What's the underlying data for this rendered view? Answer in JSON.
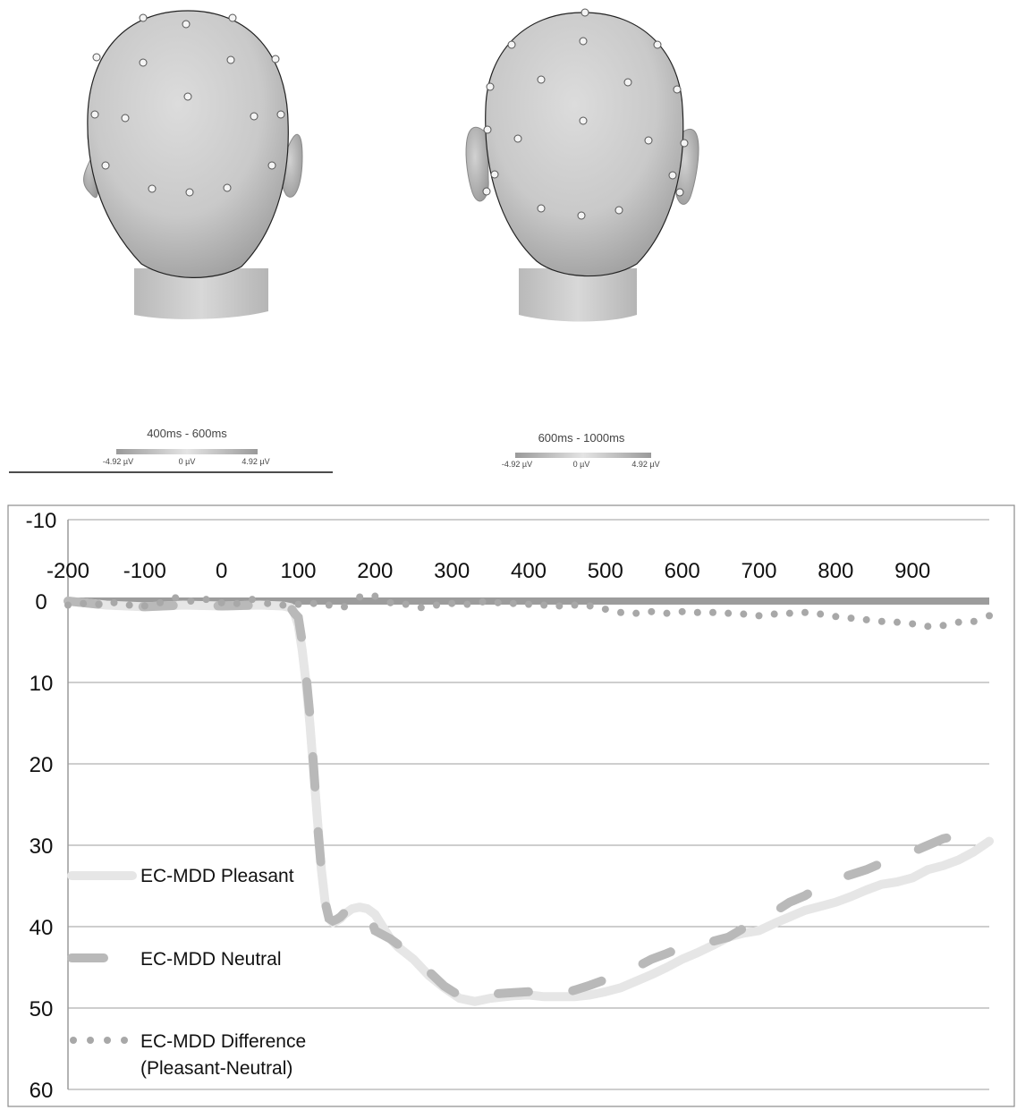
{
  "topomaps": [
    {
      "window_label": "400ms - 600ms",
      "scale_labels": [
        "-4.92 µV",
        "0 µV",
        "4.92 µV"
      ]
    },
    {
      "window_label": "600ms - 1000ms",
      "scale_labels": [
        "-4.92 µV",
        "0 µV",
        "4.92 µV"
      ]
    }
  ],
  "chart_data": {
    "type": "line",
    "title": "",
    "xlabel": "",
    "ylabel": "",
    "x_ticks": [
      -200,
      -100,
      0,
      100,
      200,
      300,
      400,
      500,
      600,
      700,
      800,
      900
    ],
    "y_ticks": [
      -10,
      0,
      10,
      20,
      30,
      40,
      50,
      60
    ],
    "xlim": [
      -200,
      1000
    ],
    "ylim": [
      -10,
      60
    ],
    "y_inverted": true,
    "grid": true,
    "legend_placement": "bottom-left",
    "colors": {
      "pleasant": "#e6e6e6",
      "neutral": "#b9b9b9",
      "difference": "#a8a8a8",
      "zero": "#9c9c9c"
    },
    "series": [
      {
        "name": "EC-MDD Pleasant",
        "style": "solid",
        "x": [
          -200,
          -150,
          -100,
          -50,
          0,
          50,
          80,
          90,
          95,
          100,
          105,
          110,
          115,
          120,
          125,
          130,
          135,
          140,
          145,
          150,
          155,
          160,
          170,
          180,
          190,
          200,
          210,
          220,
          230,
          250,
          270,
          290,
          310,
          330,
          350,
          380,
          400,
          420,
          440,
          460,
          480,
          500,
          520,
          540,
          560,
          580,
          600,
          620,
          640,
          660,
          680,
          700,
          720,
          740,
          760,
          780,
          800,
          820,
          840,
          860,
          880,
          900,
          920,
          940,
          960,
          980,
          1000
        ],
        "y": [
          0,
          0.5,
          0.7,
          0.5,
          0.6,
          0.5,
          0.6,
          0.8,
          1.5,
          3,
          6,
          10,
          15,
          21,
          27,
          33,
          37,
          39,
          39.5,
          39.3,
          39,
          38.5,
          37.8,
          37.6,
          37.8,
          38.5,
          40,
          41.5,
          42.5,
          44,
          46,
          47.5,
          48.8,
          49.2,
          48.8,
          48.5,
          48.4,
          48.6,
          48.6,
          48.6,
          48.4,
          48,
          47.5,
          46.7,
          45.9,
          45,
          44,
          43.2,
          42.3,
          41.3,
          40.8,
          40.5,
          39.6,
          38.8,
          38,
          37.5,
          37,
          36.3,
          35.5,
          34.8,
          34.5,
          34,
          33,
          32.5,
          31.8,
          30.8,
          29.5
        ]
      },
      {
        "name": "EC-MDD Neutral",
        "style": "dashed",
        "x": [
          -200,
          -150,
          -100,
          -50,
          0,
          50,
          80,
          90,
          95,
          100,
          105,
          110,
          115,
          120,
          125,
          130,
          135,
          140,
          145,
          150,
          155,
          160,
          170,
          180,
          190,
          200,
          210,
          220,
          230,
          250,
          270,
          290,
          310,
          330,
          350,
          380,
          400,
          420,
          440,
          460,
          480,
          500,
          520,
          540,
          560,
          580,
          600,
          620,
          640,
          660,
          680,
          700,
          720,
          740,
          760,
          780,
          800,
          820,
          840,
          860,
          880,
          900,
          920,
          940,
          960,
          980,
          1000
        ],
        "y": [
          0,
          0.5,
          0.7,
          0.5,
          0.6,
          0.5,
          0.6,
          0.8,
          1.5,
          2,
          5,
          9,
          14,
          20.5,
          27.5,
          33,
          37,
          39,
          39.3,
          39.1,
          38.8,
          38.3,
          37.8,
          37.6,
          37.8,
          40.5,
          41,
          41.5,
          42.2,
          43.5,
          45.5,
          47.3,
          48.5,
          48.6,
          48.3,
          48.1,
          48,
          48.2,
          48.3,
          47.8,
          47.2,
          46.5,
          45.8,
          45,
          44,
          43.3,
          42.5,
          42,
          41.8,
          41.3,
          40.2,
          39.3,
          38.2,
          37,
          36.2,
          35,
          34.2,
          33.6,
          33,
          32.2,
          31.4,
          30.8,
          30,
          29.2,
          28.8,
          28.3,
          28
        ]
      },
      {
        "name": "EC-MDD Difference\n(Pleasant-Neutral)",
        "style": "dotted",
        "x": [
          -200,
          -180,
          -160,
          -140,
          -120,
          -100,
          -80,
          -60,
          -40,
          -20,
          0,
          20,
          40,
          60,
          80,
          100,
          120,
          140,
          160,
          180,
          200,
          220,
          240,
          260,
          280,
          300,
          320,
          340,
          360,
          380,
          400,
          420,
          440,
          460,
          480,
          500,
          520,
          540,
          560,
          580,
          600,
          620,
          640,
          660,
          680,
          700,
          720,
          740,
          760,
          780,
          800,
          820,
          840,
          860,
          880,
          900,
          920,
          940,
          960,
          980,
          1000
        ],
        "y": [
          0.5,
          0.3,
          0.4,
          0.2,
          0.5,
          0.6,
          0.2,
          -0.4,
          0,
          -0.2,
          0.2,
          0.3,
          -0.2,
          0.3,
          0.5,
          0.4,
          0.3,
          0.5,
          0.7,
          -0.5,
          -0.6,
          0.2,
          0.4,
          0.8,
          0.5,
          0.3,
          0.4,
          0.1,
          0.2,
          0.3,
          0.4,
          0.5,
          0.6,
          0.5,
          0.6,
          1,
          1.4,
          1.5,
          1.3,
          1.5,
          1.3,
          1.4,
          1.4,
          1.5,
          1.6,
          1.8,
          1.6,
          1.5,
          1.4,
          1.6,
          1.9,
          2.1,
          2.3,
          2.5,
          2.6,
          2.8,
          3.1,
          3,
          2.6,
          2.5,
          1.8
        ]
      }
    ]
  }
}
